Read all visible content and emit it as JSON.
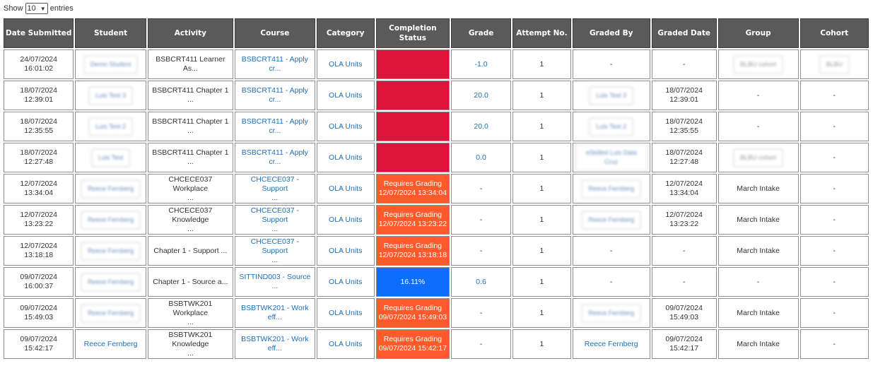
{
  "controls": {
    "show_label": "Show",
    "entries_value": "10",
    "entries_label": "entries"
  },
  "columns": [
    "Date Submitted",
    "Student",
    "Activity",
    "Course",
    "Category",
    "Completion Status",
    "Grade",
    "Attempt No.",
    "Graded By",
    "Graded Date",
    "Group",
    "Cohort"
  ],
  "rows": [
    {
      "date_submitted": [
        "24/07/2024",
        "16:01:02"
      ],
      "student": "Demo Student",
      "student_blurred": true,
      "activity": [
        "BSBCRT411 Learner",
        "As..."
      ],
      "course": [
        "BSBCRT411 - Apply",
        "cr..."
      ],
      "category": "OLA Units",
      "status": {
        "type": "red",
        "lines": []
      },
      "grade": "-1.0",
      "attempt": "1",
      "graded_by": "-",
      "graded_by_blurred": false,
      "graded_date": [
        "-"
      ],
      "group": "BLBU cohort",
      "group_blurred": true,
      "cohort": "BLBU",
      "cohort_blurred": true
    },
    {
      "date_submitted": [
        "18/07/2024",
        "12:39:01"
      ],
      "student": "Luis Test 3",
      "student_blurred": true,
      "activity": [
        "BSBCRT411 Chapter 1 ..."
      ],
      "course": [
        "BSBCRT411 - Apply",
        "cr..."
      ],
      "category": "OLA Units",
      "status": {
        "type": "red",
        "lines": []
      },
      "grade": "20.0",
      "attempt": "1",
      "graded_by": "Luis Test 3",
      "graded_by_blurred": true,
      "graded_date": [
        "18/07/2024",
        "12:39:01"
      ],
      "group": "-",
      "group_blurred": false,
      "cohort": "-",
      "cohort_blurred": false
    },
    {
      "date_submitted": [
        "18/07/2024",
        "12:35:55"
      ],
      "student": "Luis Test 2",
      "student_blurred": true,
      "activity": [
        "BSBCRT411 Chapter 1 ..."
      ],
      "course": [
        "BSBCRT411 - Apply",
        "cr..."
      ],
      "category": "OLA Units",
      "status": {
        "type": "red",
        "lines": []
      },
      "grade": "20.0",
      "attempt": "1",
      "graded_by": "Luis Test 2",
      "graded_by_blurred": true,
      "graded_date": [
        "18/07/2024",
        "12:35:55"
      ],
      "group": "-",
      "group_blurred": false,
      "cohort": "-",
      "cohort_blurred": false
    },
    {
      "date_submitted": [
        "18/07/2024",
        "12:27:48"
      ],
      "student": "Luis Test",
      "student_blurred": true,
      "activity": [
        "BSBCRT411 Chapter 1 ..."
      ],
      "course": [
        "BSBCRT411 - Apply",
        "cr..."
      ],
      "category": "OLA Units",
      "status": {
        "type": "red",
        "lines": []
      },
      "grade": "0.0",
      "attempt": "1",
      "graded_by": "eSkilled Luis Data Cruz",
      "graded_by_blurred": true,
      "graded_date": [
        "18/07/2024",
        "12:27:48"
      ],
      "group": "BLBU cohort",
      "group_blurred": true,
      "cohort": "-",
      "cohort_blurred": false
    },
    {
      "date_submitted": [
        "12/07/2024",
        "13:34:04"
      ],
      "student": "Reece Fernberg",
      "student_blurred": true,
      "activity": [
        "CHCECE037 Workplace",
        "..."
      ],
      "course": [
        "CHCECE037 - Support",
        "..."
      ],
      "category": "OLA Units",
      "status": {
        "type": "orange",
        "lines": [
          "Requires Grading",
          "12/07/2024 13:34:04"
        ]
      },
      "grade": "-",
      "attempt": "1",
      "graded_by": "Reece Fernberg",
      "graded_by_blurred": true,
      "graded_date": [
        "12/07/2024",
        "13:34:04"
      ],
      "group": "March Intake",
      "group_blurred": false,
      "cohort": "-",
      "cohort_blurred": false
    },
    {
      "date_submitted": [
        "12/07/2024",
        "13:23:22"
      ],
      "student": "Reece Fernberg",
      "student_blurred": true,
      "activity": [
        "CHCECE037 Knowledge",
        "..."
      ],
      "course": [
        "CHCECE037 - Support",
        "..."
      ],
      "category": "OLA Units",
      "status": {
        "type": "orange",
        "lines": [
          "Requires Grading",
          "12/07/2024 13:23:22"
        ]
      },
      "grade": "-",
      "attempt": "1",
      "graded_by": "Reece Fernberg",
      "graded_by_blurred": true,
      "graded_date": [
        "12/07/2024",
        "13:23:22"
      ],
      "group": "March Intake",
      "group_blurred": false,
      "cohort": "-",
      "cohort_blurred": false
    },
    {
      "date_submitted": [
        "12/07/2024",
        "13:18:18"
      ],
      "student": "Reece Fernberg",
      "student_blurred": true,
      "activity": [
        "Chapter 1 - Support ..."
      ],
      "course": [
        "CHCECE037 - Support",
        "..."
      ],
      "category": "OLA Units",
      "status": {
        "type": "orange",
        "lines": [
          "Requires Grading",
          "12/07/2024 13:18:18"
        ]
      },
      "grade": "-",
      "attempt": "1",
      "graded_by": "-",
      "graded_by_blurred": false,
      "graded_date": [
        "-"
      ],
      "group": "March Intake",
      "group_blurred": false,
      "cohort": "-",
      "cohort_blurred": false
    },
    {
      "date_submitted": [
        "09/07/2024",
        "16:00:37"
      ],
      "student": "Reece Fernberg",
      "student_blurred": true,
      "activity": [
        "Chapter 1 - Source a..."
      ],
      "course": [
        "SITTIND003 - Source",
        "..."
      ],
      "category": "OLA Units",
      "status": {
        "type": "blue",
        "lines": [
          "16.11%"
        ]
      },
      "grade": "0.6",
      "attempt": "1",
      "graded_by": "-",
      "graded_by_blurred": false,
      "graded_date": [
        "-"
      ],
      "group": "-",
      "group_blurred": false,
      "cohort": "-",
      "cohort_blurred": false
    },
    {
      "date_submitted": [
        "09/07/2024",
        "15:49:03"
      ],
      "student": "Reece Fernberg",
      "student_blurred": true,
      "activity": [
        "BSBTWK201 Workplace",
        "..."
      ],
      "course": [
        "BSBTWK201 - Work",
        "eff..."
      ],
      "category": "OLA Units",
      "status": {
        "type": "orange",
        "lines": [
          "Requires Grading",
          "09/07/2024 15:49:03"
        ]
      },
      "grade": "-",
      "attempt": "1",
      "graded_by": "Reece Fernberg",
      "graded_by_blurred": true,
      "graded_date": [
        "09/07/2024",
        "15:49:03"
      ],
      "group": "March Intake",
      "group_blurred": false,
      "cohort": "-",
      "cohort_blurred": false
    },
    {
      "date_submitted": [
        "09/07/2024",
        "15:42:17"
      ],
      "student": "Reece Fernberg",
      "student_blurred": false,
      "activity": [
        "BSBTWK201 Knowledge",
        "..."
      ],
      "course": [
        "BSBTWK201 - Work",
        "eff..."
      ],
      "category": "OLA Units",
      "status": {
        "type": "orange",
        "lines": [
          "Requires Grading",
          "09/07/2024 15:42:17"
        ]
      },
      "grade": "-",
      "attempt": "1",
      "graded_by": "Reece Fernberg",
      "graded_by_blurred": false,
      "graded_date": [
        "09/07/2024",
        "15:42:17"
      ],
      "group": "March Intake",
      "group_blurred": false,
      "cohort": "-",
      "cohort_blurred": false
    }
  ],
  "colors": {
    "header_bg": "#5a5a5a",
    "link": "#1e6fb6",
    "status_red": "#dc143c",
    "status_orange": "#ff5a2c",
    "status_blue": "#0d6efd"
  }
}
